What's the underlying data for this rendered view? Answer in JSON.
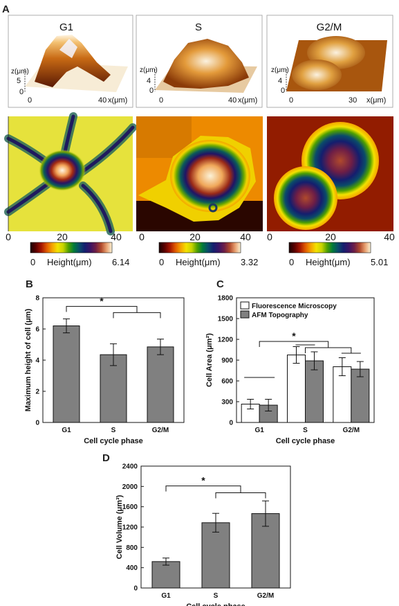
{
  "panel_a": {
    "label": "A",
    "topo3d": [
      {
        "title": "G1",
        "z_label": "z(μm)",
        "z_ticks": [
          "5",
          "0"
        ],
        "x_ticks": [
          "0",
          "40"
        ],
        "x_label": "x(μm)"
      },
      {
        "title": "S",
        "z_label": "z(μm)",
        "z_ticks": [
          "4",
          "0"
        ],
        "x_ticks": [
          "0",
          "40"
        ],
        "x_label": "x(μm)"
      },
      {
        "title": "G2/M",
        "z_label": "z(μm)",
        "z_ticks": [
          "4",
          "0"
        ],
        "x_ticks": [
          "0",
          "30"
        ],
        "x_label": "x(μm)"
      }
    ],
    "maps": [
      {
        "x_ticks": [
          "0",
          "20",
          "40"
        ],
        "cb_min": "0",
        "cb_label": "Height(μm)",
        "cb_max": "6.14"
      },
      {
        "x_ticks": [
          "0",
          "20",
          "40"
        ],
        "cb_min": "0",
        "cb_label": "Height(μm)",
        "cb_max": "3.32"
      },
      {
        "x_ticks": [
          "0",
          "20",
          "40"
        ],
        "cb_min": "0",
        "cb_label": "Height(μm)",
        "cb_max": "5.01"
      }
    ],
    "colormap": [
      "#1a0000",
      "#5a0000",
      "#a31500",
      "#e05a00",
      "#f5a300",
      "#f2e200",
      "#c9d400",
      "#4fa000",
      "#007a3a",
      "#0a4b6a",
      "#141e6e",
      "#3a1464",
      "#6e1e46",
      "#b04a2c",
      "#e8a070",
      "#fbf3d5"
    ]
  },
  "chart_data": [
    {
      "panel": "B",
      "type": "bar",
      "categories": [
        "G1",
        "S",
        "G2/M"
      ],
      "values": [
        6.2,
        4.35,
        4.85
      ],
      "errors": [
        0.45,
        0.7,
        0.5
      ],
      "ylim": [
        0,
        8
      ],
      "yticks": [
        "0",
        "2",
        "4",
        "6",
        "8"
      ],
      "xlabel": "Cell cycle phase",
      "ylabel": "Maximum height of cell (μm)",
      "significance": "*",
      "bar_color": "#808080"
    },
    {
      "panel": "C",
      "type": "bar",
      "categories": [
        "G1",
        "S",
        "G2/M"
      ],
      "series": [
        {
          "name": "Fluorescence Microscopy",
          "values": [
            265,
            975,
            805
          ],
          "errors": [
            70,
            120,
            130
          ],
          "color": "#ffffff"
        },
        {
          "name": "AFM Topography",
          "values": [
            250,
            890,
            770
          ],
          "errors": [
            85,
            130,
            110
          ],
          "color": "#808080"
        }
      ],
      "ylim": [
        0,
        1800
      ],
      "yticks": [
        "0",
        "300",
        "600",
        "900",
        "1200",
        "1500",
        "1800"
      ],
      "xlabel": "Cell cycle phase",
      "ylabel": "Cell Area (μm²)",
      "legend_position": "top-left",
      "significance": "*"
    },
    {
      "panel": "D",
      "type": "bar",
      "categories": [
        "G1",
        "S",
        "G2/M"
      ],
      "values": [
        520,
        1285,
        1465
      ],
      "errors": [
        70,
        185,
        250
      ],
      "ylim": [
        0,
        2400
      ],
      "yticks": [
        "0",
        "400",
        "800",
        "1200",
        "1600",
        "2000",
        "2400"
      ],
      "xlabel": "Cell cycle phase",
      "ylabel": "Cell Volume (μm³)",
      "significance": "*",
      "bar_color": "#808080"
    }
  ]
}
